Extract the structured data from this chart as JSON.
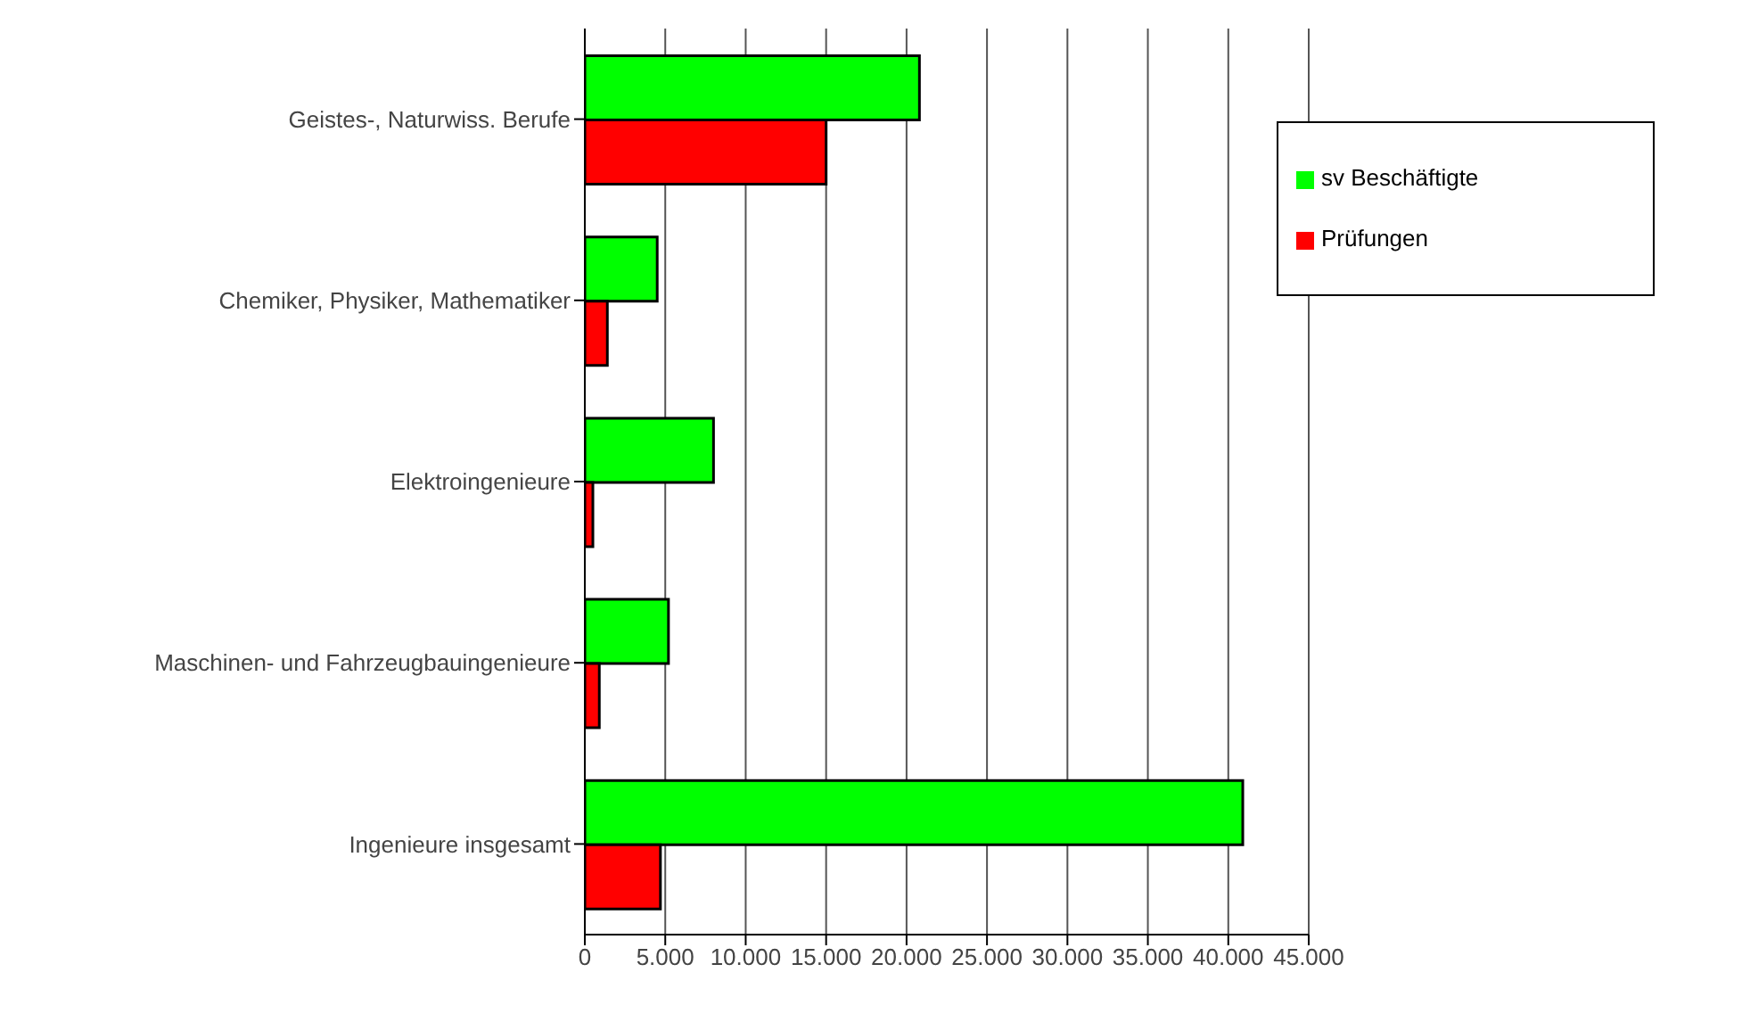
{
  "chart_data": {
    "type": "bar",
    "orientation": "horizontal",
    "categories": [
      "Geistes-, Naturwiss. Berufe",
      "Chemiker, Physiker, Mathematiker",
      "Elektroingenieure",
      "Maschinen- und Fahrzeugbauingenieure",
      "Ingenieure insgesamt"
    ],
    "series": [
      {
        "name": "sv Beschäftigte",
        "color": "#00ff00",
        "values": [
          20800,
          4500,
          8000,
          5200,
          40900
        ]
      },
      {
        "name": "Prüfungen",
        "color": "#ff0000",
        "values": [
          15000,
          1400,
          500,
          900,
          4700
        ]
      }
    ],
    "xlim": [
      0,
      45000
    ],
    "xticks": [
      0,
      {
        "value": 5000,
        "label": "5.000"
      },
      {
        "value": 10000,
        "label": "10.000"
      },
      {
        "value": 15000,
        "label": "15.000"
      },
      {
        "value": 20000,
        "label": "20.000"
      },
      {
        "value": 25000,
        "label": "25.000"
      },
      {
        "value": 30000,
        "label": "30.000"
      },
      {
        "value": 35000,
        "label": "35.000"
      },
      {
        "value": 40000,
        "label": "40.000"
      },
      {
        "value": 45000,
        "label": "45.000"
      }
    ],
    "grid": "x",
    "legend": "top right"
  }
}
